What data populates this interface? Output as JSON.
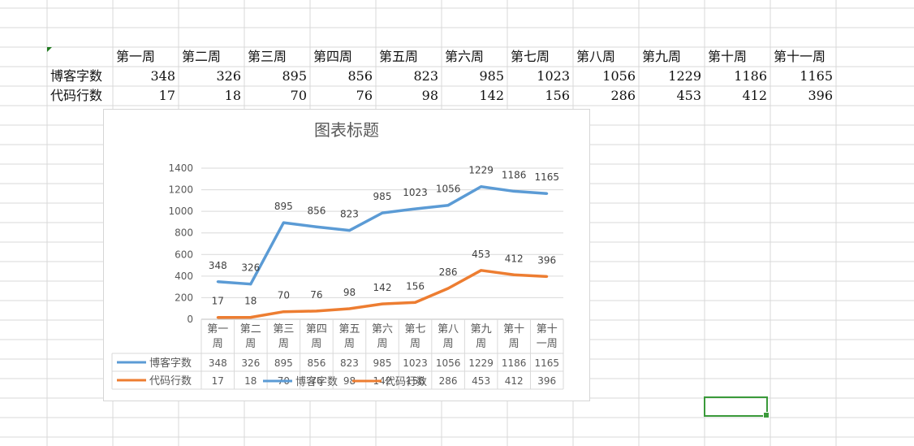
{
  "spreadsheet": {
    "headers": [
      "第一周",
      "第二周",
      "第三周",
      "第四周",
      "第五周",
      "第六周",
      "第七周",
      "第八周",
      "第九周",
      "第十周",
      "第十一周"
    ],
    "rows": [
      {
        "label": "博客字数",
        "values": [
          348,
          326,
          895,
          856,
          823,
          985,
          1023,
          1056,
          1229,
          1186,
          1165
        ]
      },
      {
        "label": "代码行数",
        "values": [
          17,
          18,
          70,
          76,
          98,
          142,
          156,
          286,
          453,
          412,
          396
        ]
      }
    ]
  },
  "chart_data": {
    "type": "line",
    "title": "图表标题",
    "categories": [
      "第一\n周",
      "第二\n周",
      "第三\n周",
      "第四\n周",
      "第五\n周",
      "第六\n周",
      "第七\n周",
      "第八\n周",
      "第九\n周",
      "第十\n周",
      "第十\n一周"
    ],
    "series": [
      {
        "name": "博客字数",
        "values": [
          348,
          326,
          895,
          856,
          823,
          985,
          1023,
          1056,
          1229,
          1186,
          1165
        ],
        "color": "#5b9bd5"
      },
      {
        "name": "代码行数",
        "values": [
          17,
          18,
          70,
          76,
          98,
          142,
          156,
          286,
          453,
          412,
          396
        ],
        "color": "#ed7d31"
      }
    ],
    "ylim": [
      0,
      1400
    ],
    "yticks": [
      0,
      200,
      400,
      600,
      800,
      1000,
      1200,
      1400
    ],
    "grid": true,
    "data_table": true,
    "legend_position": "bottom"
  }
}
